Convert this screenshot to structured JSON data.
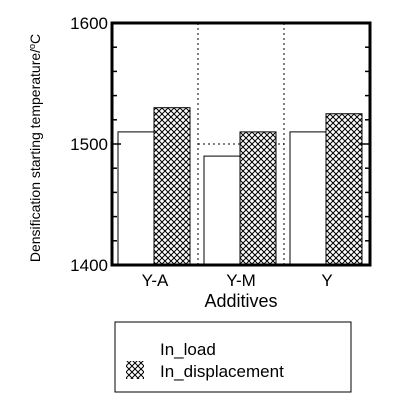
{
  "chart_data": {
    "type": "bar",
    "title": "",
    "xlabel": "Additives",
    "ylabel": "Densification starting temperature/",
    "ylabel_unit": "°C",
    "categories": [
      "Y-A",
      "Y-M",
      "Y"
    ],
    "ylim": [
      1400,
      1600
    ],
    "yticks": [
      1400,
      1500,
      1600
    ],
    "grid": false,
    "legend_position": "bottom",
    "series": [
      {
        "name": "In_load",
        "values": [
          1510,
          1490,
          1510
        ],
        "fill": "#ffffff",
        "pattern": "none"
      },
      {
        "name": "In_displacement",
        "values": [
          1530,
          1510,
          1525
        ],
        "fill": "#ffffff",
        "pattern": "crosshatch"
      }
    ],
    "annotations": {
      "dotted_separators": true,
      "dotted_reference_value": 1500
    }
  }
}
